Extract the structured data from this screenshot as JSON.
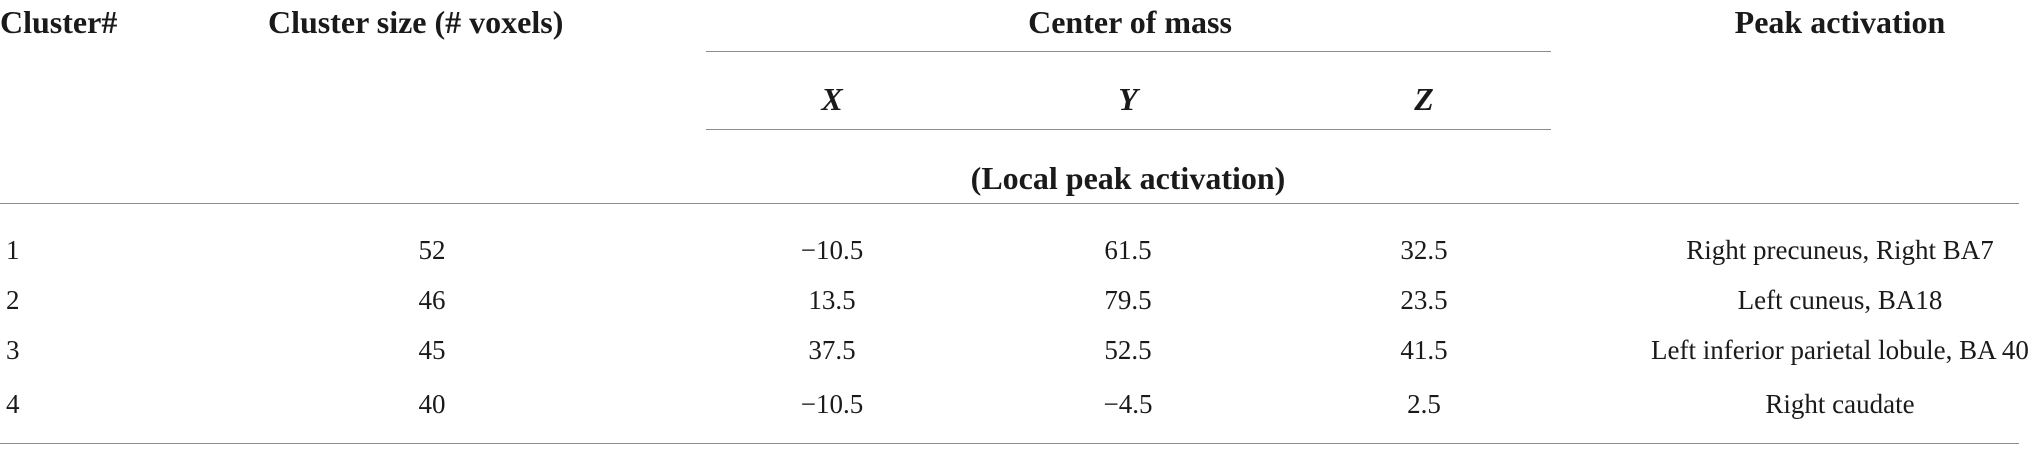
{
  "table": {
    "headers": {
      "cluster_num": "Cluster#",
      "cluster_size": "Cluster size (# voxels)",
      "center_of_mass": "Center of mass",
      "x": "X",
      "y": "Y",
      "z": "Z",
      "local_peak": "(Local peak activation)",
      "peak_activation": "Peak activation"
    },
    "rows": [
      {
        "cluster": "1",
        "size": "52",
        "x": "−10.5",
        "y": "61.5",
        "z": "32.5",
        "peak": "Right precuneus, Right BA7"
      },
      {
        "cluster": "2",
        "size": "46",
        "x": "13.5",
        "y": "79.5",
        "z": "23.5",
        "peak": "Left cuneus, BA18"
      },
      {
        "cluster": "3",
        "size": "45",
        "x": "37.5",
        "y": "52.5",
        "z": "41.5",
        "peak": "Left inferior parietal lobule, BA 40"
      },
      {
        "cluster": "4",
        "size": "40",
        "x": "−10.5",
        "y": "−4.5",
        "z": "2.5",
        "peak": "Right caudate"
      }
    ]
  }
}
